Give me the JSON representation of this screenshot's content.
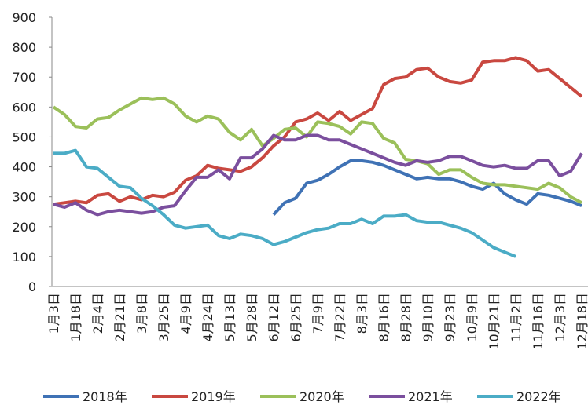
{
  "chart_data": {
    "type": "line",
    "categories": [
      "1月3日",
      null,
      "1月18日",
      null,
      "2月4日",
      null,
      "2月21日",
      null,
      "3月8日",
      null,
      "3月25日",
      null,
      "4月9日",
      null,
      "4月24日",
      null,
      "5月13日",
      null,
      "5月28日",
      null,
      "6月12日",
      null,
      "6月25日",
      null,
      "7月9日",
      null,
      "7月22日",
      null,
      "8月3日",
      null,
      "8月16日",
      null,
      "8月28日",
      null,
      "9月10日",
      null,
      "9月23日",
      null,
      "10月9日",
      null,
      "10月21日",
      null,
      "11月2日",
      null,
      "11月16日",
      null,
      "12月3日",
      null,
      "12月18日"
    ],
    "ylim": [
      0,
      900
    ],
    "yticks": [
      0,
      100,
      200,
      300,
      400,
      500,
      600,
      700,
      800,
      900
    ],
    "series": [
      {
        "name": "2018年",
        "color": "#3f72b5",
        "values": [
          null,
          null,
          null,
          null,
          null,
          null,
          null,
          null,
          null,
          null,
          null,
          null,
          null,
          null,
          null,
          null,
          null,
          null,
          null,
          null,
          240,
          280,
          295,
          345,
          355,
          375,
          400,
          420,
          420,
          415,
          405,
          390,
          375,
          360,
          365,
          360,
          360,
          350,
          335,
          325,
          345,
          310,
          290,
          275,
          310,
          305,
          295,
          285,
          270
        ]
      },
      {
        "name": "2019年",
        "color": "#c94840",
        "values": [
          275,
          280,
          285,
          280,
          305,
          310,
          285,
          300,
          290,
          305,
          300,
          315,
          355,
          370,
          405,
          395,
          390,
          385,
          400,
          430,
          470,
          500,
          550,
          560,
          580,
          555,
          585,
          555,
          575,
          595,
          675,
          695,
          700,
          725,
          730,
          700,
          685,
          680,
          690,
          750,
          755,
          755,
          765,
          755,
          720,
          725,
          695,
          665,
          635
        ]
      },
      {
        "name": "2020年",
        "color": "#9bc05a",
        "values": [
          600,
          575,
          535,
          530,
          560,
          565,
          590,
          610,
          630,
          625,
          630,
          610,
          570,
          550,
          570,
          560,
          515,
          490,
          525,
          470,
          495,
          525,
          530,
          500,
          550,
          545,
          535,
          510,
          550,
          545,
          495,
          480,
          425,
          420,
          410,
          375,
          390,
          390,
          365,
          345,
          340,
          340,
          335,
          330,
          325,
          345,
          330,
          300,
          280
        ]
      },
      {
        "name": "2021年",
        "color": "#7b4f9e",
        "values": [
          275,
          265,
          280,
          255,
          240,
          250,
          255,
          250,
          245,
          250,
          265,
          270,
          320,
          365,
          365,
          390,
          360,
          430,
          430,
          460,
          505,
          490,
          490,
          505,
          505,
          490,
          490,
          475,
          460,
          445,
          430,
          415,
          405,
          420,
          415,
          420,
          435,
          435,
          420,
          405,
          400,
          405,
          395,
          395,
          420,
          420,
          370,
          385,
          445
        ]
      },
      {
        "name": "2022年",
        "color": "#4bacc6",
        "values": [
          445,
          445,
          455,
          400,
          395,
          365,
          335,
          330,
          295,
          270,
          240,
          205,
          195,
          200,
          205,
          170,
          160,
          175,
          170,
          160,
          140,
          150,
          165,
          180,
          190,
          195,
          210,
          210,
          225,
          210,
          235,
          235,
          240,
          220,
          215,
          215,
          205,
          195,
          180,
          155,
          130,
          115,
          100,
          null,
          null,
          null,
          null,
          null,
          null
        ]
      }
    ]
  }
}
